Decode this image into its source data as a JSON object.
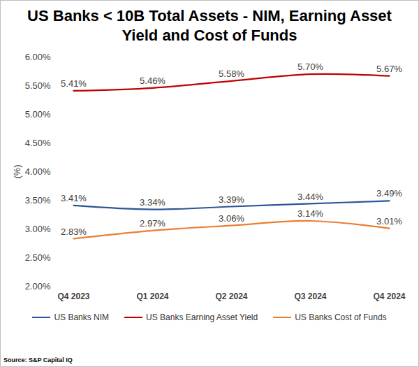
{
  "chart_data": {
    "type": "line",
    "title": "US Banks < 10B Total Assets - NIM, Earning Asset Yield and Cost of Funds",
    "y_label": "(%)",
    "source": "Source: S&P Capital IQ",
    "categories": [
      "Q4 2023",
      "Q1 2024",
      "Q2 2024",
      "Q3 2024",
      "Q4 2024"
    ],
    "series": [
      {
        "name": "US Banks NIM",
        "color": "#2f5597",
        "values": [
          3.41,
          3.34,
          3.39,
          3.44,
          3.49
        ],
        "value_labels": [
          "3.41%",
          "3.34%",
          "3.39%",
          "3.44%",
          "3.49%"
        ]
      },
      {
        "name": "US Banks Earning Asset Yield",
        "color": "#c00000",
        "values": [
          5.41,
          5.46,
          5.58,
          5.7,
          5.67
        ],
        "value_labels": [
          "5.41%",
          "5.46%",
          "5.58%",
          "5.70%",
          "5.67%"
        ]
      },
      {
        "name": "US Banks Cost of Funds",
        "color": "#ed7d31",
        "values": [
          2.83,
          2.97,
          3.06,
          3.14,
          3.01
        ],
        "value_labels": [
          "2.83%",
          "2.97%",
          "3.06%",
          "3.14%",
          "3.01%"
        ]
      }
    ],
    "ylim": [
      2,
      6
    ],
    "yticks": [
      {
        "value": 2,
        "label": "2.00%"
      },
      {
        "value": 2.5,
        "label": "2.50%"
      },
      {
        "value": 3,
        "label": "3.00%"
      },
      {
        "value": 3.5,
        "label": "3.50%"
      },
      {
        "value": 4,
        "label": "4.00%"
      },
      {
        "value": 4.5,
        "label": "4.50%"
      },
      {
        "value": 5,
        "label": "5.00%"
      },
      {
        "value": 5.5,
        "label": "5.50%"
      },
      {
        "value": 6,
        "label": "6.00%"
      }
    ],
    "grid": false,
    "data_labels": true,
    "legend": "bottom",
    "line_style": "smooth",
    "marker": "none"
  }
}
